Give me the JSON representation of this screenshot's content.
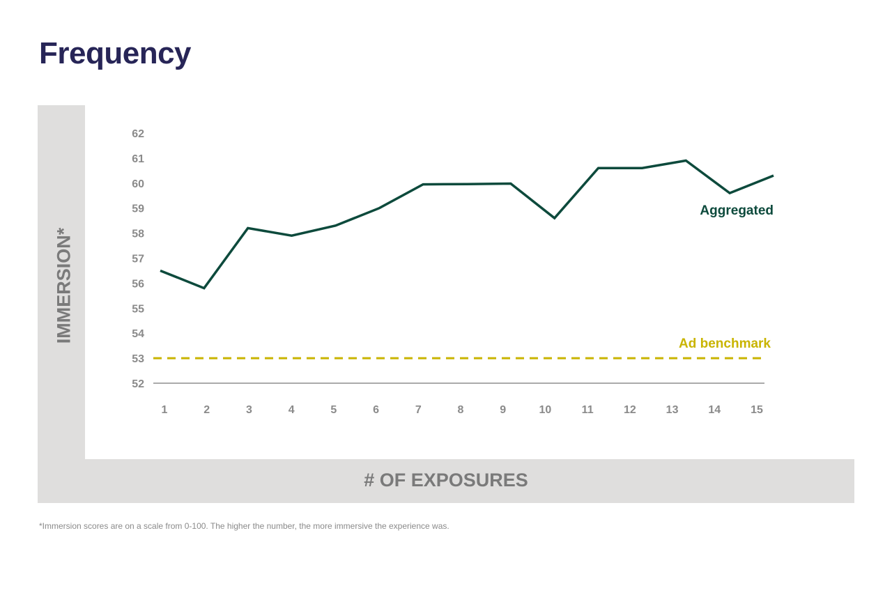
{
  "title": "Frequency",
  "footnote": "*Immersion scores are on a scale from 0-100. The higher the number, the more immersive the experience was.",
  "chart_data": {
    "type": "line",
    "title": "Frequency",
    "xlabel": "# OF EXPOSURES",
    "ylabel": "IMMERSION*",
    "x": [
      1,
      2,
      3,
      4,
      5,
      6,
      7,
      8,
      9,
      10,
      11,
      12,
      13,
      14,
      15
    ],
    "yticks": [
      52,
      53,
      54,
      55,
      56,
      57,
      58,
      59,
      60,
      61,
      62
    ],
    "ylim": [
      52,
      62
    ],
    "grid": false,
    "series": [
      {
        "name": "Aggregated",
        "color": "#0d4a3c",
        "style": "solid",
        "values": [
          56.5,
          55.8,
          58.2,
          57.9,
          58.3,
          59.0,
          59.95,
          59.96,
          59.98,
          58.6,
          60.6,
          60.6,
          60.9,
          59.6,
          60.3
        ]
      },
      {
        "name": "Ad benchmark",
        "color": "#c9b400",
        "style": "dashed",
        "values": [
          53,
          53,
          53,
          53,
          53,
          53,
          53,
          53,
          53,
          53,
          53,
          53,
          53,
          53,
          53
        ]
      }
    ]
  }
}
